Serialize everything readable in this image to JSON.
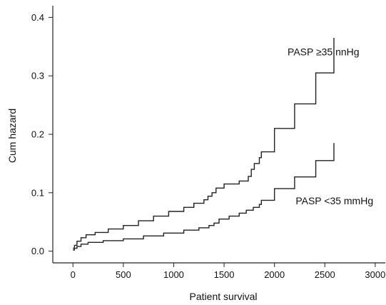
{
  "chart_data": {
    "type": "line",
    "title": "",
    "xlabel": "Patient survival",
    "ylabel": "Cum hazard",
    "xlim": [
      -200,
      3100
    ],
    "ylim": [
      -0.02,
      0.42
    ],
    "xticks": [
      0,
      500,
      1000,
      1500,
      2000,
      2500,
      3000
    ],
    "xtick_labels": [
      "0",
      "500",
      "1000",
      "1500",
      "2000",
      "2500",
      "3000"
    ],
    "yticks": [
      0.0,
      0.1,
      0.2,
      0.3,
      0.4
    ],
    "ytick_labels": [
      "0.0",
      "0.1",
      "0.2",
      "0.3",
      "0.4"
    ],
    "grid": false,
    "step": true,
    "series": [
      {
        "name": "PASP ≥35 nnHg",
        "color": "#222222",
        "x": [
          0,
          15,
          40,
          80,
          130,
          220,
          350,
          500,
          650,
          800,
          950,
          1100,
          1200,
          1300,
          1340,
          1380,
          1420,
          1500,
          1650,
          1740,
          1770,
          1800,
          1850,
          1870,
          2000,
          2200,
          2410,
          2590
        ],
        "y": [
          0.005,
          0.01,
          0.017,
          0.023,
          0.028,
          0.032,
          0.038,
          0.044,
          0.052,
          0.06,
          0.068,
          0.075,
          0.082,
          0.088,
          0.094,
          0.1,
          0.108,
          0.115,
          0.12,
          0.128,
          0.14,
          0.15,
          0.16,
          0.17,
          0.21,
          0.252,
          0.305,
          0.365
        ]
      },
      {
        "name": "PASP <35 mmHg",
        "color": "#222222",
        "x": [
          0,
          15,
          40,
          80,
          150,
          300,
          500,
          700,
          900,
          1100,
          1250,
          1350,
          1400,
          1450,
          1550,
          1650,
          1720,
          1790,
          1850,
          1870,
          2000,
          2200,
          2410,
          2590
        ],
        "y": [
          0.002,
          0.005,
          0.008,
          0.012,
          0.015,
          0.018,
          0.021,
          0.026,
          0.031,
          0.036,
          0.04,
          0.044,
          0.048,
          0.055,
          0.06,
          0.065,
          0.07,
          0.075,
          0.08,
          0.087,
          0.107,
          0.127,
          0.155,
          0.185
        ]
      }
    ],
    "annotations": [
      {
        "text": "PASP ≥35 nnHg",
        "x": 2130,
        "y": 0.335
      },
      {
        "text": "PASP <35 mmHg",
        "x": 2210,
        "y": 0.08
      }
    ]
  }
}
